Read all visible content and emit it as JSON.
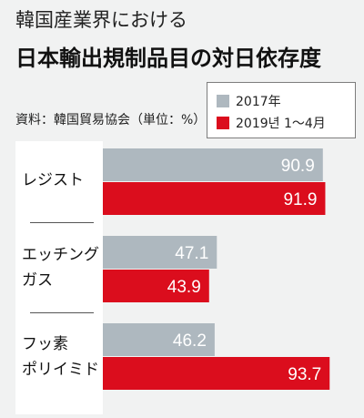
{
  "header": {
    "title": "韓国産業界における",
    "subtitle": "日本輸出規制品目の対日依存度",
    "source": "資料：韓国貿易協会（単位：%）"
  },
  "colors": {
    "series_2017": "#aeb8bf",
    "series_2019": "#db0d1d",
    "value_text": "#ffffff"
  },
  "chart_data": {
    "type": "bar",
    "orientation": "horizontal",
    "categories": [
      "レジスト",
      "エッチングガス",
      "フッ素ポリイミド"
    ],
    "category_lines": [
      [
        "レジスト"
      ],
      [
        "エッチング",
        "ガス"
      ],
      [
        "フッ素",
        "ポリイミド"
      ]
    ],
    "series": [
      {
        "name": "2017年",
        "values": [
          90.9,
          47.1,
          46.2
        ]
      },
      {
        "name": "2019년 1～4月",
        "values": [
          91.9,
          43.9,
          93.7
        ]
      }
    ],
    "xlim": [
      0,
      100
    ],
    "legend": "top-right",
    "grid": false
  }
}
